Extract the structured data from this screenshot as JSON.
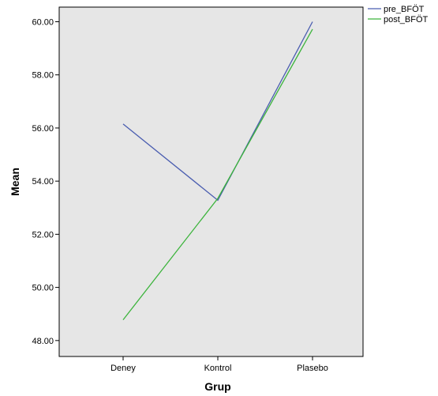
{
  "chart_data": {
    "type": "line",
    "xlabel": "Grup",
    "ylabel": "Mean",
    "categories": [
      "Deney",
      "Kontrol",
      "Plasebo"
    ],
    "series": [
      {
        "name": "pre_BFÖT",
        "values": [
          56.15,
          53.28,
          60.0
        ],
        "color": "#4a5db0"
      },
      {
        "name": "post_BFÖT",
        "values": [
          48.78,
          53.35,
          59.72
        ],
        "color": "#3cb43c"
      }
    ],
    "ylim": [
      47.4,
      60.55
    ],
    "yticks": [
      48.0,
      50.0,
      52.0,
      54.0,
      56.0,
      58.0,
      60.0
    ],
    "ytick_labels": [
      "48.00",
      "50.00",
      "52.00",
      "54.00",
      "56.00",
      "58.00",
      "60.00"
    ],
    "grid": false,
    "legend_position": "top-right",
    "background": "#e6e6e6"
  }
}
